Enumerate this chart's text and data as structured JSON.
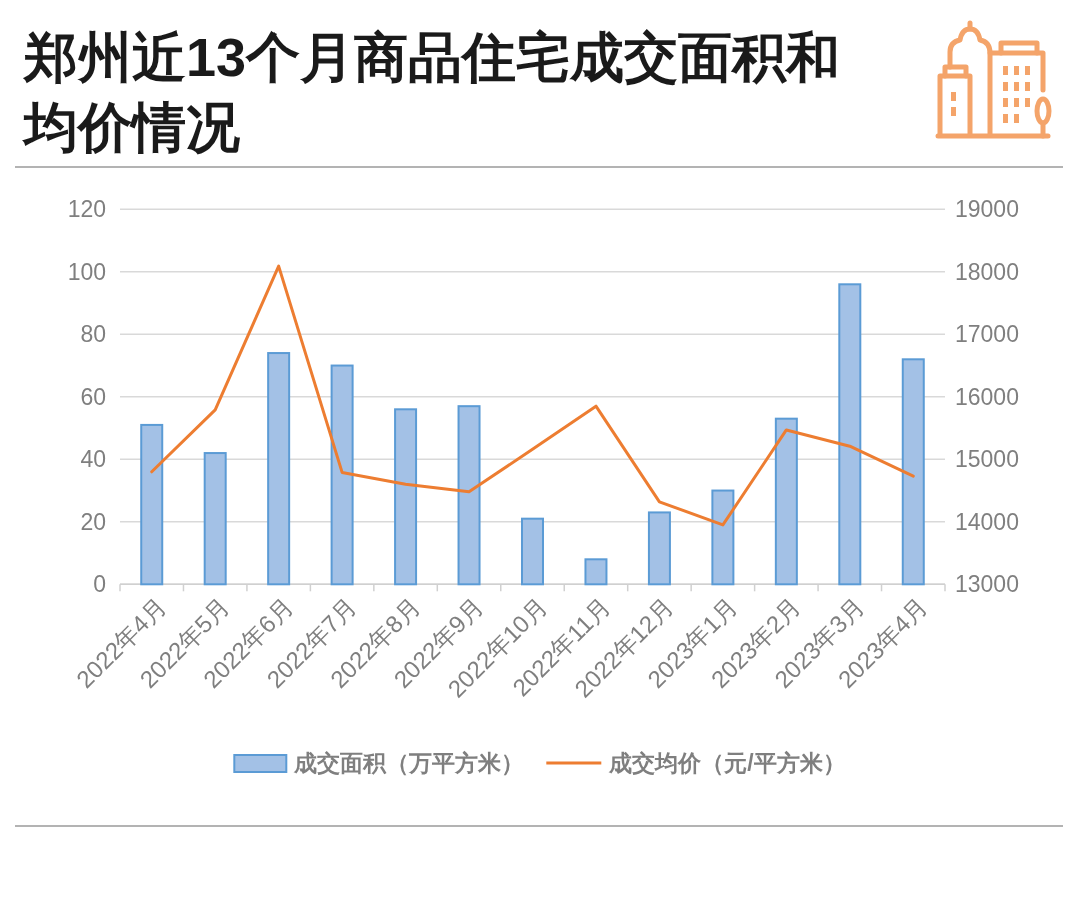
{
  "chart_data": {
    "type": "bar",
    "title": "郑州近13个月商品住宅成交面积和均价情况",
    "categories": [
      "2022年4月",
      "2022年5月",
      "2022年6月",
      "2022年7月",
      "2022年8月",
      "2022年9月",
      "2022年10月",
      "2022年11月",
      "2022年12月",
      "2023年1月",
      "2023年2月",
      "2023年3月",
      "2023年4月"
    ],
    "series": [
      {
        "name": "成交面积（万平方米）",
        "color": "#a3c1e6",
        "values": [
          51,
          42,
          74,
          70,
          56,
          57,
          21,
          8,
          23,
          30,
          53,
          96,
          72
        ]
      },
      {
        "name": "成交均价（元/平方米）",
        "type": "line",
        "axis": "y2",
        "color": "#ed7d31",
        "values": [
          14800,
          15790,
          18090,
          14790,
          14600,
          14480,
          15160,
          15850,
          14320,
          13950,
          15470,
          15210,
          14730
        ]
      }
    ],
    "ylim": [
      0,
      120
    ],
    "yticks": [
      0,
      20,
      40,
      60,
      80,
      100,
      120
    ],
    "y2lim": [
      13000,
      19000
    ],
    "y2ticks": [
      13000,
      14000,
      15000,
      16000,
      17000,
      18000,
      19000
    ],
    "grid": "y",
    "legend": "bottom"
  }
}
